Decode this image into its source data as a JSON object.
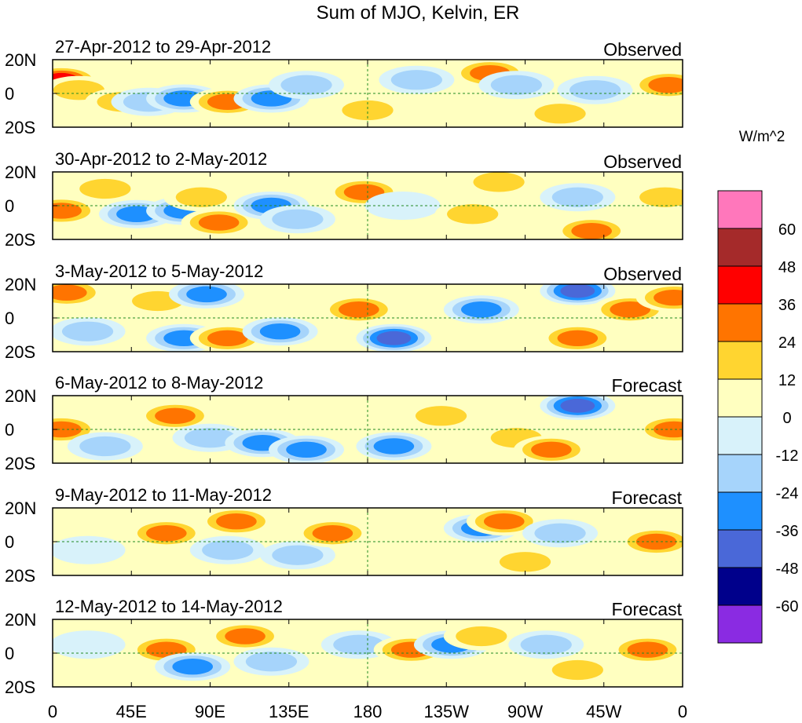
{
  "title": "Sum of MJO, Kelvin, ER",
  "colorbar": {
    "unit_label": "W/m^2",
    "levels": [
      "60",
      "48",
      "36",
      "24",
      "12",
      "0",
      "-12",
      "-24",
      "-36",
      "-48",
      "-60"
    ],
    "colors": [
      "#ff77bb",
      "#a52a2a",
      "#ff0000",
      "#ff7400",
      "#ffd530",
      "#ffffc0",
      "#d8f2fa",
      "#a6d4fb",
      "#1e90ff",
      "#4a68d8",
      "#00008b",
      "#8a2be2"
    ]
  },
  "chart_data": {
    "type": "heatmap",
    "title": "Sum of MJO, Kelvin, ER",
    "units": "W/m^2",
    "x_tick_labels": [
      "0",
      "45E",
      "90E",
      "135E",
      "180",
      "135W",
      "90W",
      "45W",
      "0"
    ],
    "y_tick_labels": [
      "20N",
      "0",
      "20S"
    ],
    "xlim": [
      0,
      360
    ],
    "ylim": [
      -20,
      20
    ],
    "levels": [
      -60,
      -48,
      -36,
      -24,
      -12,
      0,
      12,
      24,
      36,
      48,
      60
    ],
    "panels": [
      {
        "period": "27-Apr-2012 to 29-Apr-2012",
        "status": "Observed",
        "blobs": [
          {
            "lon": 5,
            "lat": 8,
            "value": 40
          },
          {
            "lon": 15,
            "lat": 2,
            "value": 20
          },
          {
            "lon": 40,
            "lat": -5,
            "value": 15
          },
          {
            "lon": 55,
            "lat": -5,
            "value": -15
          },
          {
            "lon": 75,
            "lat": -3,
            "value": -35
          },
          {
            "lon": 100,
            "lat": -5,
            "value": 30
          },
          {
            "lon": 125,
            "lat": -3,
            "value": -35
          },
          {
            "lon": 145,
            "lat": 5,
            "value": -20
          },
          {
            "lon": 180,
            "lat": -10,
            "value": 15
          },
          {
            "lon": 208,
            "lat": 8,
            "value": -15
          },
          {
            "lon": 250,
            "lat": 12,
            "value": 30
          },
          {
            "lon": 265,
            "lat": 5,
            "value": -20
          },
          {
            "lon": 290,
            "lat": -12,
            "value": 15
          },
          {
            "lon": 310,
            "lat": 2,
            "value": -15
          },
          {
            "lon": 352,
            "lat": 5,
            "value": 30
          }
        ]
      },
      {
        "period": "30-Apr-2012 to 2-May-2012",
        "status": "Observed",
        "blobs": [
          {
            "lon": 5,
            "lat": -3,
            "value": 25
          },
          {
            "lon": 30,
            "lat": 10,
            "value": 15
          },
          {
            "lon": 48,
            "lat": -5,
            "value": -25
          },
          {
            "lon": 75,
            "lat": -3,
            "value": -25
          },
          {
            "lon": 85,
            "lat": 5,
            "value": 15
          },
          {
            "lon": 95,
            "lat": -10,
            "value": 28
          },
          {
            "lon": 125,
            "lat": 0,
            "value": -35
          },
          {
            "lon": 140,
            "lat": -8,
            "value": -20
          },
          {
            "lon": 178,
            "lat": 8,
            "value": 30
          },
          {
            "lon": 200,
            "lat": 0,
            "value": -12
          },
          {
            "lon": 255,
            "lat": 14,
            "value": 15
          },
          {
            "lon": 240,
            "lat": -5,
            "value": 15
          },
          {
            "lon": 300,
            "lat": 5,
            "value": -15
          },
          {
            "lon": 308,
            "lat": -15,
            "value": 30
          },
          {
            "lon": 350,
            "lat": 5,
            "value": 15
          }
        ]
      },
      {
        "period": "3-May-2012 to 5-May-2012",
        "status": "Observed",
        "blobs": [
          {
            "lon": 8,
            "lat": 15,
            "value": 30
          },
          {
            "lon": 20,
            "lat": -8,
            "value": -15
          },
          {
            "lon": 60,
            "lat": 10,
            "value": 20
          },
          {
            "lon": 75,
            "lat": -12,
            "value": -25
          },
          {
            "lon": 88,
            "lat": 14,
            "value": -30
          },
          {
            "lon": 100,
            "lat": -12,
            "value": 30
          },
          {
            "lon": 130,
            "lat": -8,
            "value": -35
          },
          {
            "lon": 175,
            "lat": 5,
            "value": 28
          },
          {
            "lon": 195,
            "lat": -12,
            "value": -40
          },
          {
            "lon": 245,
            "lat": 5,
            "value": -35
          },
          {
            "lon": 300,
            "lat": 16,
            "value": -40
          },
          {
            "lon": 300,
            "lat": -12,
            "value": 30
          },
          {
            "lon": 330,
            "lat": 5,
            "value": 28
          },
          {
            "lon": 355,
            "lat": 12,
            "value": 25
          }
        ]
      },
      {
        "period": "6-May-2012 to 8-May-2012",
        "status": "Forecast",
        "blobs": [
          {
            "lon": 5,
            "lat": 0,
            "value": 25
          },
          {
            "lon": 30,
            "lat": -10,
            "value": -15
          },
          {
            "lon": 70,
            "lat": 8,
            "value": 30
          },
          {
            "lon": 90,
            "lat": -5,
            "value": -20
          },
          {
            "lon": 120,
            "lat": -8,
            "value": -30
          },
          {
            "lon": 145,
            "lat": -12,
            "value": -25
          },
          {
            "lon": 195,
            "lat": -10,
            "value": -30
          },
          {
            "lon": 222,
            "lat": 8,
            "value": 15
          },
          {
            "lon": 265,
            "lat": -5,
            "value": 15
          },
          {
            "lon": 300,
            "lat": 14,
            "value": -40
          },
          {
            "lon": 285,
            "lat": -12,
            "value": 28
          },
          {
            "lon": 355,
            "lat": 0,
            "value": 30
          }
        ]
      },
      {
        "period": "9-May-2012 to 11-May-2012",
        "status": "Forecast",
        "blobs": [
          {
            "lon": 20,
            "lat": -5,
            "value": -12
          },
          {
            "lon": 65,
            "lat": 5,
            "value": 30
          },
          {
            "lon": 105,
            "lat": 12,
            "value": 30
          },
          {
            "lon": 100,
            "lat": -5,
            "value": -15
          },
          {
            "lon": 140,
            "lat": -8,
            "value": -20
          },
          {
            "lon": 160,
            "lat": 5,
            "value": 25
          },
          {
            "lon": 218,
            "lat": 0,
            "value": 12
          },
          {
            "lon": 245,
            "lat": 8,
            "value": -35
          },
          {
            "lon": 258,
            "lat": 12,
            "value": 25
          },
          {
            "lon": 290,
            "lat": 5,
            "value": -15
          },
          {
            "lon": 270,
            "lat": -12,
            "value": 15
          },
          {
            "lon": 345,
            "lat": 0,
            "value": 30
          }
        ]
      },
      {
        "period": "12-May-2012 to 14-May-2012",
        "status": "Forecast",
        "blobs": [
          {
            "lon": 20,
            "lat": 5,
            "value": -12
          },
          {
            "lon": 65,
            "lat": 2,
            "value": 36
          },
          {
            "lon": 80,
            "lat": -8,
            "value": -30
          },
          {
            "lon": 110,
            "lat": 10,
            "value": 30
          },
          {
            "lon": 125,
            "lat": -5,
            "value": -15
          },
          {
            "lon": 175,
            "lat": 5,
            "value": -20
          },
          {
            "lon": 205,
            "lat": 2,
            "value": 25
          },
          {
            "lon": 228,
            "lat": 5,
            "value": -35
          },
          {
            "lon": 245,
            "lat": 10,
            "value": 15
          },
          {
            "lon": 282,
            "lat": 5,
            "value": -15
          },
          {
            "lon": 300,
            "lat": -10,
            "value": 15
          },
          {
            "lon": 340,
            "lat": 2,
            "value": 25
          }
        ]
      }
    ]
  }
}
